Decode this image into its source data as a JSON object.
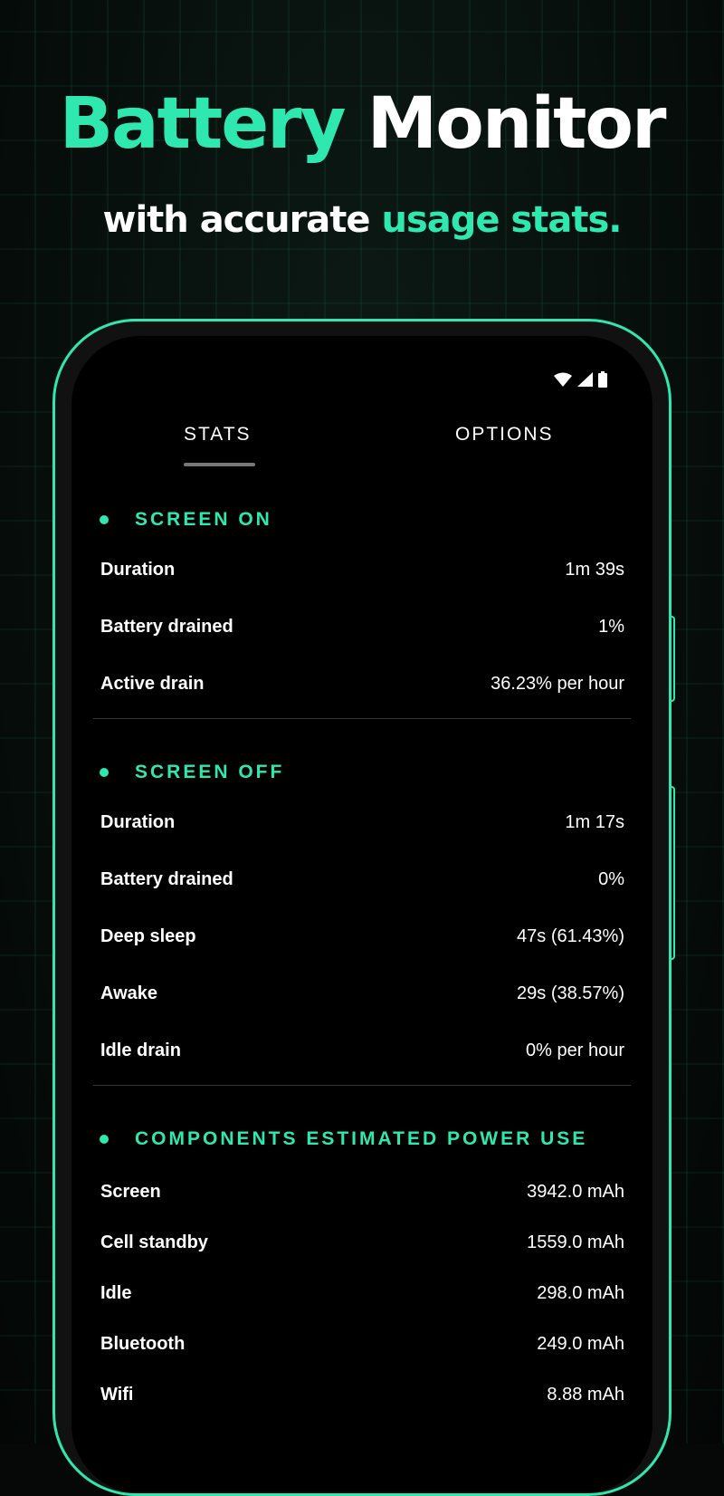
{
  "headline": {
    "accent": "Battery",
    "rest": "Monitor"
  },
  "subline": {
    "pre": "with accurate",
    "accent": "usage stats."
  },
  "colors": {
    "accent": "#2ee8b0",
    "background": "#000000"
  },
  "status_icons": [
    "wifi-icon",
    "signal-icon",
    "battery-icon"
  ],
  "tabs": [
    {
      "label": "STATS",
      "active": true
    },
    {
      "label": "OPTIONS",
      "active": false
    }
  ],
  "sections": [
    {
      "title": "SCREEN ON",
      "rows": [
        [
          "Duration",
          "1m 39s"
        ],
        [
          "Battery drained",
          "1%"
        ],
        [
          "Active drain",
          "36.23% per hour"
        ]
      ]
    },
    {
      "title": "SCREEN OFF",
      "rows": [
        [
          "Duration",
          "1m 17s"
        ],
        [
          "Battery drained",
          "0%"
        ],
        [
          "Deep sleep",
          "47s  (61.43%)"
        ],
        [
          "Awake",
          "29s  (38.57%)"
        ],
        [
          "Idle drain",
          "0% per hour"
        ]
      ]
    },
    {
      "title": "COMPONENTS ESTIMATED POWER USE",
      "rows": [
        [
          "Screen",
          "3942.0 mAh"
        ],
        [
          "Cell standby",
          "1559.0 mAh"
        ],
        [
          "Idle",
          "298.0 mAh"
        ],
        [
          "Bluetooth",
          "249.0 mAh"
        ],
        [
          "Wifi",
          "8.88 mAh"
        ]
      ]
    }
  ]
}
